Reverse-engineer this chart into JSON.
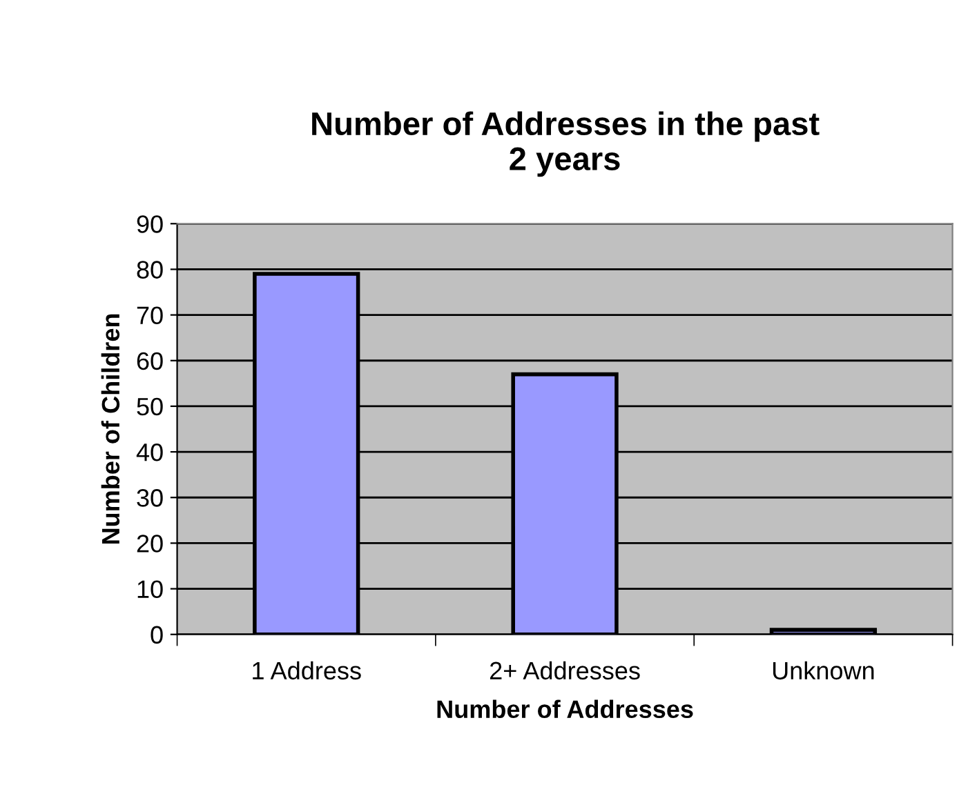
{
  "chart_data": {
    "type": "bar",
    "title": "Number of Addresses in the past\n2 years",
    "xlabel": "Number of Addresses",
    "ylabel": "Number of Children",
    "categories": [
      "1 Address",
      "2+ Addresses",
      "Unknown"
    ],
    "values": [
      79,
      57,
      1
    ],
    "color": "#9999ff",
    "ylim": [
      0,
      90
    ],
    "yticks": [
      0,
      10,
      20,
      30,
      40,
      50,
      60,
      70,
      80,
      90
    ],
    "grid": "y",
    "legend": false
  }
}
